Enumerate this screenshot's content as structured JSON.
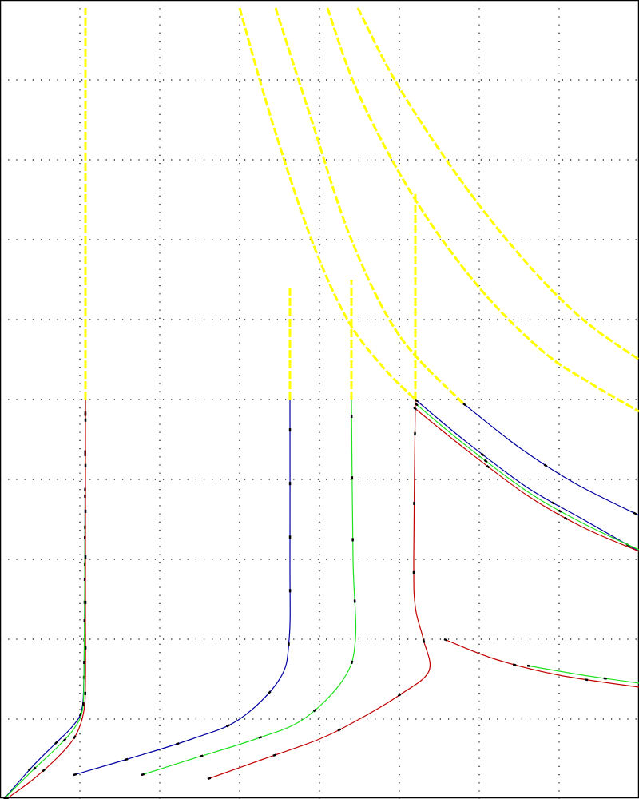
{
  "chart_data": {
    "type": "line",
    "title": "",
    "xlabel": "",
    "ylabel": "",
    "xlim": [
      0,
      8
    ],
    "ylim": [
      0,
      10
    ],
    "grid": true,
    "grid_style": "dotted",
    "colors": {
      "blue": "#0000a0",
      "green": "#20e020",
      "red": "#c00000",
      "yellow": "#ffff00",
      "marker": "#000000"
    },
    "series": [
      {
        "color": "yellow",
        "points": [
          [
            1.07,
            5.0
          ],
          [
            1.07,
            9.9
          ]
        ]
      },
      {
        "color": "blue",
        "points": [
          [
            0.05,
            0.0
          ],
          [
            0.4,
            0.4
          ],
          [
            0.7,
            0.7
          ],
          [
            0.9,
            0.9
          ],
          [
            1.02,
            1.1
          ],
          [
            1.05,
            1.5
          ],
          [
            1.06,
            2.5
          ],
          [
            1.07,
            5.0
          ]
        ]
      },
      {
        "color": "green",
        "points": [
          [
            0.05,
            0.0
          ],
          [
            0.4,
            0.35
          ],
          [
            0.72,
            0.65
          ],
          [
            0.92,
            0.87
          ],
          [
            1.03,
            1.1
          ],
          [
            1.05,
            1.5
          ],
          [
            1.06,
            2.5
          ],
          [
            1.07,
            5.0
          ]
        ]
      },
      {
        "color": "red",
        "points": [
          [
            0.08,
            0.0
          ],
          [
            0.42,
            0.25
          ],
          [
            0.75,
            0.55
          ],
          [
            0.95,
            0.8
          ],
          [
            1.05,
            1.1
          ],
          [
            1.07,
            1.5
          ],
          [
            1.07,
            2.5
          ],
          [
            1.07,
            5.0
          ]
        ]
      },
      {
        "color": "yellow",
        "points": [
          [
            3.63,
            5.0
          ],
          [
            3.63,
            6.4
          ]
        ]
      },
      {
        "color": "blue",
        "points": [
          [
            0.92,
            0.3
          ],
          [
            1.6,
            0.5
          ],
          [
            2.4,
            0.75
          ],
          [
            3.0,
            1.0
          ],
          [
            3.5,
            1.5
          ],
          [
            3.62,
            2.0
          ],
          [
            3.63,
            3.0
          ],
          [
            3.63,
            5.0
          ]
        ]
      },
      {
        "color": "yellow",
        "points": [
          [
            4.4,
            5.0
          ],
          [
            4.4,
            6.5
          ]
        ]
      },
      {
        "color": "green",
        "points": [
          [
            1.77,
            0.3
          ],
          [
            2.4,
            0.5
          ],
          [
            3.2,
            0.75
          ],
          [
            3.8,
            1.0
          ],
          [
            4.3,
            1.5
          ],
          [
            4.45,
            2.0
          ],
          [
            4.42,
            3.0
          ],
          [
            4.4,
            5.0
          ]
        ]
      },
      {
        "color": "yellow",
        "points": [
          [
            5.2,
            5.0
          ],
          [
            5.2,
            7.6
          ]
        ]
      },
      {
        "color": "red",
        "points": [
          [
            2.6,
            0.25
          ],
          [
            3.3,
            0.5
          ],
          [
            4.0,
            0.75
          ],
          [
            4.5,
            1.0
          ],
          [
            5.0,
            1.3
          ],
          [
            5.37,
            1.6
          ],
          [
            5.3,
            2.0
          ],
          [
            5.2,
            2.4
          ],
          [
            5.18,
            3.0
          ],
          [
            5.2,
            5.0
          ]
        ]
      },
      {
        "color": "red",
        "points": [
          [
            5.56,
            2.0
          ],
          [
            6.2,
            1.75
          ],
          [
            7.0,
            1.55
          ],
          [
            8.0,
            1.4
          ]
        ]
      },
      {
        "color": "green",
        "points": [
          [
            6.6,
            1.67
          ],
          [
            7.3,
            1.55
          ],
          [
            8.0,
            1.45
          ]
        ]
      },
      {
        "color": "yellow",
        "points": [
          [
            3.0,
            9.9
          ],
          [
            3.4,
            8.5
          ],
          [
            3.9,
            7.0
          ],
          [
            4.35,
            6.0
          ],
          [
            4.8,
            5.4
          ],
          [
            5.2,
            5.0
          ]
        ]
      },
      {
        "color": "blue",
        "points": [
          [
            5.2,
            5.0
          ],
          [
            5.8,
            4.5
          ],
          [
            6.6,
            3.9
          ],
          [
            7.3,
            3.5
          ],
          [
            8.0,
            3.1
          ]
        ]
      },
      {
        "color": "green",
        "points": [
          [
            5.2,
            4.95
          ],
          [
            5.8,
            4.45
          ],
          [
            6.6,
            3.85
          ],
          [
            7.3,
            3.45
          ],
          [
            8.0,
            3.12
          ]
        ]
      },
      {
        "color": "red",
        "points": [
          [
            5.18,
            4.9
          ],
          [
            5.8,
            4.4
          ],
          [
            6.6,
            3.8
          ],
          [
            7.3,
            3.4
          ],
          [
            8.0,
            3.1
          ]
        ]
      },
      {
        "color": "yellow",
        "points": [
          [
            3.45,
            9.9
          ],
          [
            3.9,
            8.5
          ],
          [
            4.4,
            7.0
          ],
          [
            5.0,
            5.8
          ],
          [
            5.8,
            4.95
          ]
        ]
      },
      {
        "color": "blue",
        "points": [
          [
            5.8,
            4.95
          ],
          [
            6.5,
            4.4
          ],
          [
            7.2,
            3.95
          ],
          [
            8.0,
            3.55
          ]
        ]
      },
      {
        "color": "yellow",
        "points": [
          [
            4.1,
            9.9
          ],
          [
            4.5,
            8.8
          ],
          [
            5.2,
            7.5
          ],
          [
            6.0,
            6.4
          ],
          [
            6.8,
            5.6
          ],
          [
            7.4,
            5.2
          ],
          [
            8.0,
            4.85
          ]
        ]
      },
      {
        "color": "yellow",
        "points": [
          [
            4.48,
            9.9
          ],
          [
            5.0,
            8.9
          ],
          [
            5.8,
            7.7
          ],
          [
            6.6,
            6.7
          ],
          [
            7.3,
            6.0
          ],
          [
            8.0,
            5.5
          ]
        ]
      }
    ]
  }
}
